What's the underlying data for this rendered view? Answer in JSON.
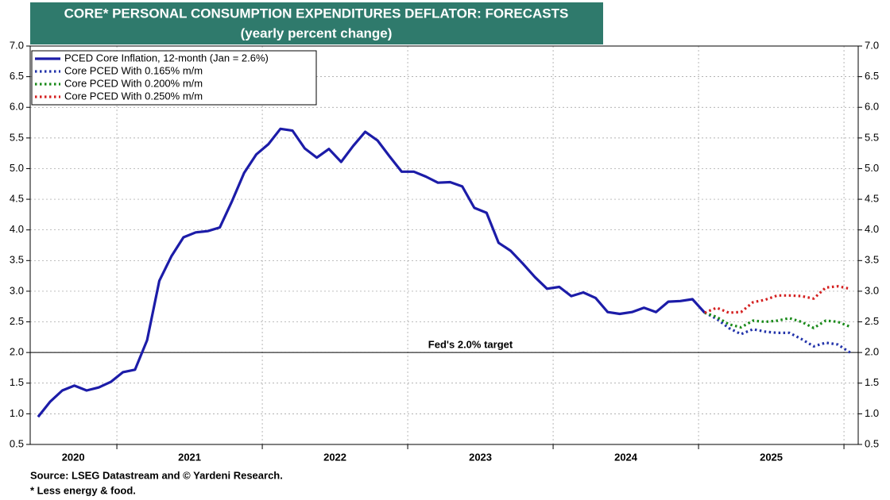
{
  "chart_data": {
    "type": "line",
    "title": "CORE* PERSONAL CONSUMPTION EXPENDITURES DEFLATOR: FORECASTS",
    "subtitle": "(yearly percent change)",
    "source": "Source: LSEG Datastream and © Yardeni Research.",
    "footnote": "* Less energy & food.",
    "annotation": {
      "text": "Fed's 2.0% target",
      "y": 2.0
    },
    "xlim": [
      2020.404,
      2026.098
    ],
    "xticks": [
      {
        "value": 2020.7,
        "label": "2020"
      },
      {
        "value": 2021.5,
        "label": "2021"
      },
      {
        "value": 2022.5,
        "label": "2022"
      },
      {
        "value": 2023.5,
        "label": "2023"
      },
      {
        "value": 2024.5,
        "label": "2024"
      },
      {
        "value": 2025.5,
        "label": "2025"
      }
    ],
    "xgrid": [
      2021,
      2022,
      2023,
      2024,
      2025,
      2026
    ],
    "ylim": [
      0.5,
      7.0
    ],
    "yticks": [
      0.5,
      {
        "value": 1,
        "label": "1.0"
      },
      1.5,
      {
        "value": 2,
        "label": "2.0"
      },
      2.5,
      {
        "value": 3,
        "label": "3.0"
      },
      3.5,
      {
        "value": 4,
        "label": "4.0"
      },
      4.5,
      {
        "value": 5,
        "label": "5.0"
      },
      5.5,
      {
        "value": 6,
        "label": "6.0"
      },
      6.5,
      {
        "value": 7,
        "label": "7.0"
      }
    ],
    "grid": true,
    "legend": "top-left",
    "series": [
      {
        "name": "PCED Core Inflation, 12-month (Jan = 2.6%)",
        "color": "#1c1ca8",
        "style": "solid",
        "x": [
          2020.458,
          2020.542,
          2020.625,
          2020.708,
          2020.792,
          2020.875,
          2020.958,
          2021.042,
          2021.125,
          2021.208,
          2021.292,
          2021.375,
          2021.458,
          2021.542,
          2021.625,
          2021.708,
          2021.792,
          2021.875,
          2021.958,
          2022.042,
          2022.125,
          2022.208,
          2022.292,
          2022.375,
          2022.458,
          2022.542,
          2022.625,
          2022.708,
          2022.792,
          2022.875,
          2022.958,
          2023.042,
          2023.125,
          2023.208,
          2023.292,
          2023.375,
          2023.458,
          2023.542,
          2023.625,
          2023.708,
          2023.792,
          2023.875,
          2023.958,
          2024.042,
          2024.125,
          2024.208,
          2024.292,
          2024.375,
          2024.458,
          2024.542,
          2024.625,
          2024.708,
          2024.792,
          2024.875,
          2024.958,
          2025.042
        ],
        "values": [
          0.95,
          1.2,
          1.38,
          1.46,
          1.38,
          1.43,
          1.52,
          1.68,
          1.72,
          2.2,
          3.17,
          3.57,
          3.88,
          3.96,
          3.98,
          4.04,
          4.47,
          4.93,
          5.23,
          5.4,
          5.65,
          5.62,
          5.33,
          5.18,
          5.32,
          5.11,
          5.37,
          5.6,
          5.46,
          5.2,
          4.95,
          4.95,
          4.87,
          4.77,
          4.78,
          4.71,
          4.36,
          4.28,
          3.79,
          3.66,
          3.45,
          3.23,
          3.04,
          3.07,
          2.92,
          2.98,
          2.89,
          2.66,
          2.63,
          2.66,
          2.73,
          2.66,
          2.83,
          2.84,
          2.87,
          2.65
        ]
      },
      {
        "name": "Core PCED With 0.165% m/m",
        "color": "#2233aa",
        "style": "dotted",
        "x": [
          2025.042,
          2025.125,
          2025.208,
          2025.292,
          2025.375,
          2025.458,
          2025.542,
          2025.625,
          2025.708,
          2025.792,
          2025.875,
          2025.958,
          2026.042
        ],
        "values": [
          2.65,
          2.55,
          2.4,
          2.3,
          2.38,
          2.34,
          2.32,
          2.32,
          2.22,
          2.1,
          2.16,
          2.13,
          2.0
        ]
      },
      {
        "name": "Core PCED With 0.200% m/m",
        "color": "#1a8a1a",
        "style": "dotted",
        "x": [
          2025.042,
          2025.125,
          2025.208,
          2025.292,
          2025.375,
          2025.458,
          2025.542,
          2025.625,
          2025.708,
          2025.792,
          2025.875,
          2025.958,
          2026.042
        ],
        "values": [
          2.65,
          2.58,
          2.46,
          2.41,
          2.52,
          2.5,
          2.52,
          2.56,
          2.5,
          2.4,
          2.52,
          2.5,
          2.42
        ]
      },
      {
        "name": "Core PCED With 0.250% m/m",
        "color": "#d42020",
        "style": "dotted",
        "x": [
          2025.042,
          2025.125,
          2025.208,
          2025.292,
          2025.375,
          2025.458,
          2025.542,
          2025.625,
          2025.708,
          2025.792,
          2025.875,
          2025.958,
          2026.042
        ],
        "values": [
          2.65,
          2.73,
          2.65,
          2.66,
          2.82,
          2.86,
          2.93,
          2.93,
          2.92,
          2.88,
          3.06,
          3.08,
          3.04
        ]
      }
    ]
  }
}
